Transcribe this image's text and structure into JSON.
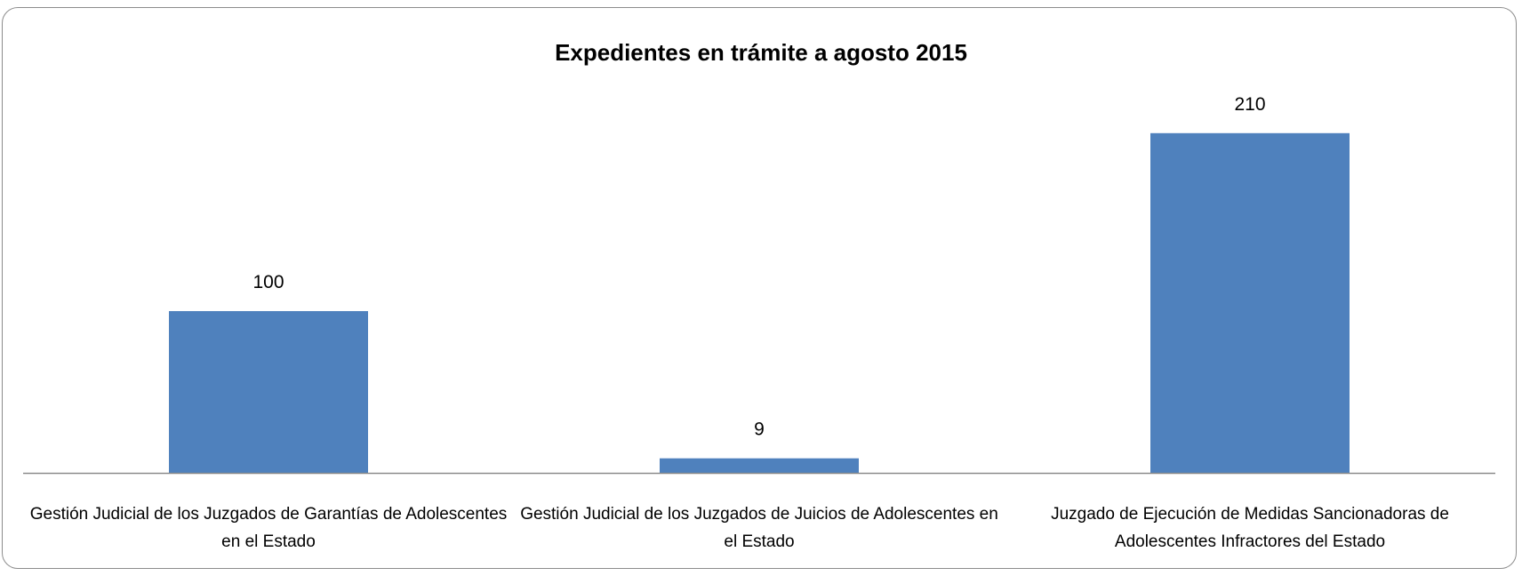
{
  "chart_data": {
    "type": "bar",
    "title": "Expedientes en trámite a agosto 2015",
    "categories": [
      [
        "Gestión Judicial de los Juzgados de Garantías de Adolescentes",
        "en el Estado"
      ],
      [
        "Gestión Judicial de los Juzgados de Juicios de Adolescentes en",
        "el Estado"
      ],
      [
        "Juzgado de Ejecución de  Medidas Sancionadoras de",
        "Adolescentes Infractores del Estado"
      ]
    ],
    "values": [
      100,
      9,
      210
    ],
    "data_labels": [
      "100",
      "9",
      "210"
    ],
    "ylim": [
      0,
      250
    ],
    "grid": false,
    "legend": "none",
    "bar_color": "#4F81BD",
    "axis_color": "#8c8c8c"
  }
}
